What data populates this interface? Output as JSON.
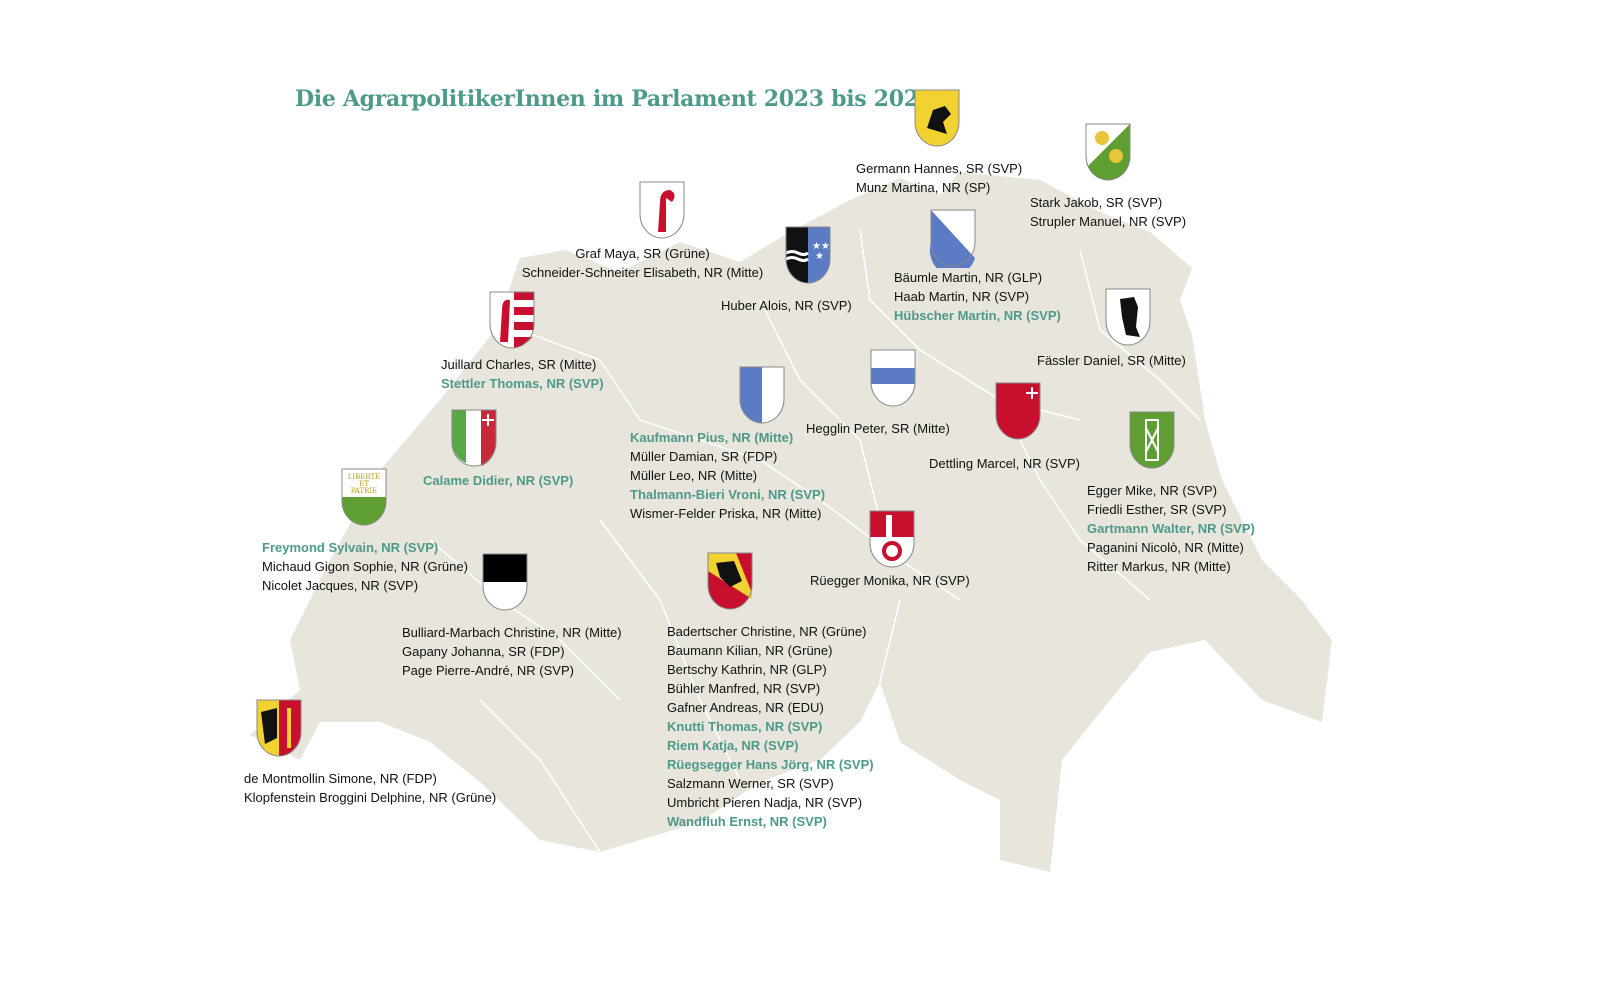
{
  "title": "Die AgrarpolitikerInnen im Parlament 2023 bis 2027",
  "colors": {
    "highlight": "#4e9a8a",
    "map_fill": "#e8e5dc",
    "border": "#ffffff",
    "text": "#111111"
  },
  "vaud_motto": "LIBERTÉ ET PATRIE",
  "groups": [
    {
      "id": "sh",
      "entries": [
        {
          "text": "Germann Hannes, SR (SVP)"
        },
        {
          "text": "Munz Martina, NR (SP)"
        }
      ]
    },
    {
      "id": "tg",
      "entries": [
        {
          "text": "Stark Jakob, SR (SVP)"
        },
        {
          "text": "Strupler Manuel, NR (SVP)"
        }
      ]
    },
    {
      "id": "bl",
      "entries": [
        {
          "text": "Graf Maya, SR (Grüne)"
        },
        {
          "text": "Schneider-Schneiter Elisabeth, NR (Mitte)"
        }
      ]
    },
    {
      "id": "ag",
      "entries": [
        {
          "text": "Huber Alois, NR (SVP)"
        }
      ]
    },
    {
      "id": "zh",
      "entries": [
        {
          "text": "Bäumle Martin, NR (GLP)"
        },
        {
          "text": "Haab Martin, NR (SVP)"
        },
        {
          "text": "Hübscher Martin, NR (SVP)",
          "highlight": true
        }
      ]
    },
    {
      "id": "ai",
      "entries": [
        {
          "text": "Fässler Daniel, SR (Mitte)"
        }
      ]
    },
    {
      "id": "ju",
      "entries": [
        {
          "text": "Juillard Charles, SR (Mitte)"
        },
        {
          "text": "Stettler Thomas, NR (SVP)",
          "highlight": true
        }
      ]
    },
    {
      "id": "lu",
      "entries": [
        {
          "text": "Kaufmann Pius, NR (Mitte)",
          "highlight": true
        },
        {
          "text": "Müller Damian, SR (FDP)"
        },
        {
          "text": "Müller Leo, NR (Mitte)"
        },
        {
          "text": "Thalmann-Bieri Vroni, NR (SVP)",
          "highlight": true
        },
        {
          "text": "Wismer-Felder Priska, NR (Mitte)"
        }
      ]
    },
    {
      "id": "zg",
      "entries": [
        {
          "text": "Hegglin Peter, SR (Mitte)"
        }
      ]
    },
    {
      "id": "sz",
      "entries": [
        {
          "text": "Dettling Marcel, NR (SVP)"
        }
      ]
    },
    {
      "id": "ne",
      "entries": [
        {
          "text": "Calame Didier, NR (SVP)",
          "highlight": true
        }
      ]
    },
    {
      "id": "vd",
      "entries": [
        {
          "text": "Freymond Sylvain, NR (SVP)",
          "highlight": true
        },
        {
          "text": "Michaud Gigon Sophie, NR (Grüne)"
        },
        {
          "text": "Nicolet Jacques, NR (SVP)"
        }
      ]
    },
    {
      "id": "sg",
      "entries": [
        {
          "text": "Egger Mike, NR (SVP)"
        },
        {
          "text": "Friedli Esther, SR (SVP)"
        },
        {
          "text": "Gartmann Walter, NR (SVP)",
          "highlight": true
        },
        {
          "text": "Paganini Nicolò, NR (Mitte)"
        },
        {
          "text": "Ritter Markus, NR (Mitte)"
        }
      ]
    },
    {
      "id": "ow",
      "entries": [
        {
          "text": "Rüegger Monika, NR (SVP)"
        }
      ]
    },
    {
      "id": "fr",
      "entries": [
        {
          "text": "Bulliard-Marbach Christine, NR (Mitte)"
        },
        {
          "text": "Gapany Johanna, SR (FDP)"
        },
        {
          "text": "Page Pierre-André, NR (SVP)"
        }
      ]
    },
    {
      "id": "be",
      "entries": [
        {
          "text": "Badertscher Christine, NR (Grüne)"
        },
        {
          "text": "Baumann Kilian, NR (Grüne)"
        },
        {
          "text": "Bertschy Kathrin, NR (GLP)"
        },
        {
          "text": "Bühler Manfred, NR (SVP)"
        },
        {
          "text": "Gafner Andreas, NR (EDU)"
        },
        {
          "text": "Knutti Thomas, NR (SVP)",
          "highlight": true
        },
        {
          "text": "Riem Katja, NR (SVP)",
          "highlight": true
        },
        {
          "text": "Rüegsegger Hans Jörg, NR (SVP)",
          "highlight": true
        },
        {
          "text": "Salzmann Werner, SR (SVP)"
        },
        {
          "text": "Umbricht Pieren Nadja, NR (SVP)"
        },
        {
          "text": "Wandfluh Ernst, NR (SVP)",
          "highlight": true
        }
      ]
    },
    {
      "id": "ge",
      "entries": [
        {
          "text": "de Montmollin Simone, NR (FDP)"
        },
        {
          "text": "Klopfenstein Broggini Delphine, NR (Grüne)"
        }
      ]
    }
  ]
}
